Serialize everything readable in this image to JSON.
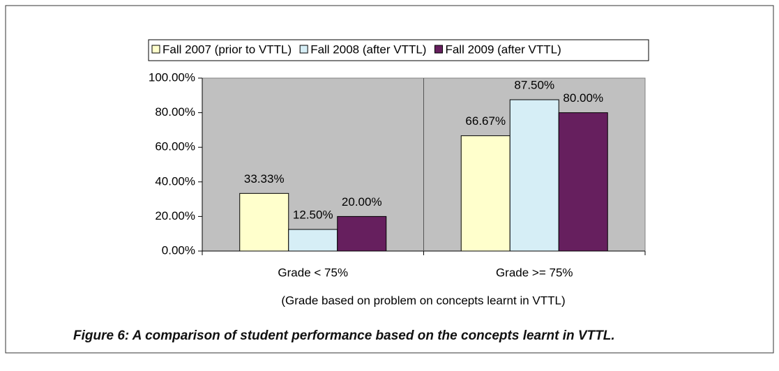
{
  "chart_data": {
    "type": "bar",
    "categories": [
      "Grade < 75%",
      "Grade >= 75%"
    ],
    "series": [
      {
        "name": "Fall 2007 (prior to VTTL)",
        "color": "#ffffcc",
        "values": [
          33.33,
          66.67
        ],
        "value_labels": [
          "33.33%",
          "66.67%"
        ]
      },
      {
        "name": "Fall 2008 (after VTTL)",
        "color": "#d6eef6",
        "values": [
          12.5,
          87.5
        ],
        "value_labels": [
          "12.50%",
          "87.50%"
        ]
      },
      {
        "name": "Fall 2009 (after VTTL)",
        "color": "#661f5e",
        "values": [
          20,
          80
        ],
        "value_labels": [
          "20.00%",
          "80.00%"
        ]
      }
    ],
    "x_label": "(Grade based on problem on concepts learnt in VTTL)",
    "ylim": [
      0,
      100
    ],
    "yticks": [
      {
        "value": 0,
        "label": "0.00%"
      },
      {
        "value": 20,
        "label": "20.00%"
      },
      {
        "value": 40,
        "label": "40.00%"
      },
      {
        "value": 60,
        "label": "60.00%"
      },
      {
        "value": 80,
        "label": "80.00%"
      },
      {
        "value": 100,
        "label": "100.00%"
      }
    ],
    "grid": false,
    "legend": "top",
    "caption": "Figure 6: A comparison of student performance based on the concepts learnt in VTTL."
  }
}
